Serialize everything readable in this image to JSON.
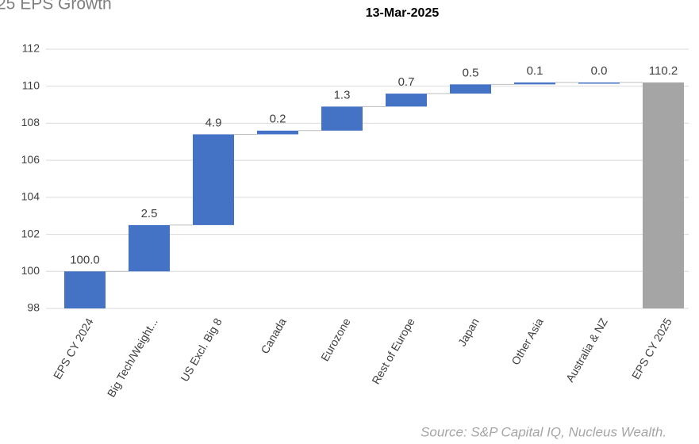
{
  "chart_data": {
    "type": "waterfall",
    "title": "25 EPS Growth",
    "subtitle": "13-Mar-2025",
    "categories": [
      "EPS CY 2024",
      "Big Tech/Weight...",
      "US Excl. Big 8",
      "Canada",
      "Eurozone",
      "Rest of Europe",
      "Japan",
      "Other Asia",
      "Australia & NZ",
      "EPS CY 2025"
    ],
    "values": [
      100.0,
      2.5,
      4.9,
      0.2,
      1.3,
      0.7,
      0.5,
      0.1,
      0.0,
      110.2
    ],
    "value_labels": [
      "100.0",
      "2.5",
      "4.9",
      "0.2",
      "1.3",
      "0.7",
      "0.5",
      "0.1",
      "0.0",
      "110.2"
    ],
    "colors": [
      "#4472c4",
      "#4472c4",
      "#4472c4",
      "#4472c4",
      "#4472c4",
      "#4472c4",
      "#4472c4",
      "#4472c4",
      "#4472c4",
      "#a5a5a5"
    ],
    "ylim": [
      98,
      112
    ],
    "yticks": [
      98,
      100,
      102,
      104,
      106,
      108,
      110,
      112
    ],
    "grid": true,
    "source": "Source: S&P Capital IQ, Nucleus Wealth."
  }
}
